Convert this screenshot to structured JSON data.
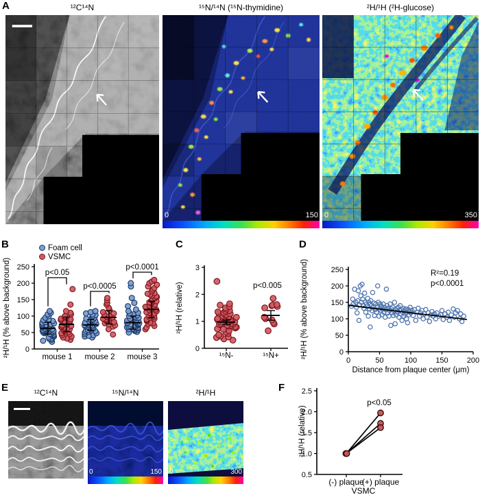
{
  "panel_labels": {
    "A": "A",
    "B": "B",
    "C": "C",
    "D": "D",
    "E": "E",
    "F": "F"
  },
  "panelA": {
    "images": [
      {
        "title": "¹²C¹⁴N"
      },
      {
        "title": "¹⁵N/¹⁴N (¹⁵N-thymidine)",
        "cbar_min": "0",
        "cbar_max": "150"
      },
      {
        "title": "²H/¹H (²H-glucose)",
        "cbar_min": "0",
        "cbar_max": "350"
      }
    ]
  },
  "panelE": {
    "images": [
      {
        "title": "¹²C¹⁴N"
      },
      {
        "title": "¹⁵N/¹⁴N",
        "cbar_min": "0",
        "cbar_max": "150"
      },
      {
        "title": "²H/¹H",
        "cbar_min": "0",
        "cbar_max": "300"
      }
    ]
  },
  "chart_data": [
    {
      "id": "B",
      "type": "scatter",
      "subtype": "grouped_beeswarm",
      "ylabel": "²H/¹H (% above background)",
      "ylim": [
        0,
        250
      ],
      "yticks": [
        0,
        50,
        100,
        150,
        200,
        250
      ],
      "categories": [
        "mouse 1",
        "mouse 2",
        "mouse 3"
      ],
      "legend": [
        {
          "label": "Foam cell",
          "color": "#7b9ed0",
          "edge": "#1e3a68"
        },
        {
          "label": "VSMC",
          "color": "#cf5a63",
          "edge": "#7e151b"
        }
      ],
      "pvalues": [
        "p<0.05",
        "p<0.0005",
        "p<0.0001"
      ],
      "series": [
        {
          "name": "Foam cell",
          "fill": "#7b9ed0",
          "edge": "#1e3a68",
          "means": [
            63,
            73,
            80
          ],
          "sds": [
            18,
            16,
            20
          ],
          "groups": [
            [
              22,
              25,
              28,
              30,
              32,
              35,
              38,
              40,
              42,
              44,
              45,
              46,
              48,
              50,
              50,
              52,
              53,
              55,
              55,
              56,
              58,
              58,
              60,
              60,
              62,
              63,
              64,
              65,
              66,
              68,
              68,
              70,
              72,
              73,
              75,
              76,
              78,
              80,
              82,
              85,
              88,
              90,
              95,
              100,
              105,
              110,
              115
            ],
            [
              35,
              38,
              40,
              42,
              45,
              48,
              50,
              52,
              54,
              55,
              56,
              58,
              60,
              62,
              63,
              65,
              66,
              68,
              70,
              70,
              72,
              73,
              75,
              76,
              78,
              80,
              82,
              84,
              85,
              88,
              90,
              92,
              95,
              98,
              100,
              103,
              105,
              108,
              112,
              115
            ],
            [
              50,
              52,
              55,
              56,
              58,
              60,
              60,
              62,
              63,
              65,
              65,
              66,
              68,
              68,
              70,
              72,
              72,
              74,
              75,
              76,
              78,
              78,
              80,
              80,
              82,
              84,
              85,
              86,
              88,
              90,
              92,
              94,
              95,
              98,
              100,
              102,
              105,
              108,
              110,
              115,
              120,
              130,
              140,
              155,
              190,
              200
            ]
          ]
        },
        {
          "name": "VSMC",
          "fill": "#cf5a63",
          "edge": "#7e151b",
          "means": [
            75,
            96,
            120
          ],
          "sds": [
            22,
            20,
            25
          ],
          "groups": [
            [
              28,
              32,
              35,
              38,
              42,
              45,
              48,
              50,
              52,
              55,
              58,
              60,
              62,
              65,
              66,
              68,
              70,
              72,
              74,
              75,
              78,
              80,
              82,
              85,
              88,
              90,
              92,
              95,
              98,
              100,
              105,
              110,
              115,
              135,
              182
            ],
            [
              44,
              60,
              68,
              72,
              75,
              78,
              80,
              82,
              85,
              88,
              90,
              92,
              95,
              96,
              98,
              100,
              105,
              108,
              112,
              118,
              125,
              135,
              140,
              148,
              155
            ],
            [
              60,
              65,
              70,
              75,
              78,
              80,
              85,
              88,
              90,
              92,
              95,
              98,
              100,
              102,
              105,
              108,
              110,
              112,
              115,
              118,
              120,
              122,
              125,
              128,
              130,
              132,
              135,
              138,
              140,
              142,
              145,
              148,
              150,
              152,
              155,
              158,
              160,
              162,
              165,
              168,
              170,
              175,
              180,
              185,
              190,
              195,
              200,
              205,
              210
            ]
          ]
        }
      ]
    },
    {
      "id": "C",
      "type": "scatter",
      "subtype": "beeswarm",
      "ylabel": "²H/¹H (relative)",
      "ylim": [
        0,
        3
      ],
      "yticks": [
        0,
        1,
        2,
        3
      ],
      "categories": [
        "¹⁵N-",
        "¹⁵N+"
      ],
      "pvalue": "p<0.005",
      "fill": "#cf5a63",
      "edge": "#7e151b",
      "series": [
        {
          "name": "¹⁵N-",
          "mean": 0.97,
          "err": 0.08,
          "values": [
            0.3,
            0.35,
            0.4,
            0.42,
            0.45,
            0.5,
            0.55,
            0.6,
            0.65,
            0.7,
            0.72,
            0.75,
            0.78,
            0.8,
            0.82,
            0.85,
            0.85,
            0.88,
            0.9,
            0.9,
            0.92,
            0.95,
            0.95,
            0.98,
            1.0,
            1.0,
            1.02,
            1.05,
            1.05,
            1.08,
            1.1,
            1.1,
            1.12,
            1.15,
            1.15,
            1.18,
            1.2,
            1.22,
            1.25,
            1.28,
            1.3,
            1.32,
            1.35,
            1.38,
            1.4,
            1.45,
            1.5,
            1.55,
            1.6,
            1.65,
            2.48
          ]
        },
        {
          "name": "¹⁵N+",
          "mean": 1.22,
          "err": 0.18,
          "values": [
            0.65,
            0.9,
            0.95,
            1.05,
            1.1,
            1.15,
            1.5,
            1.55,
            1.58,
            1.6,
            1.62,
            1.85
          ]
        }
      ]
    },
    {
      "id": "D",
      "type": "scatter",
      "xlabel": "Distance from plaque center (μm)",
      "ylabel": "²H/¹H (% above background)",
      "xlim": [
        0,
        200
      ],
      "ylim": [
        0,
        250
      ],
      "xticks": [
        0,
        50,
        100,
        150,
        200
      ],
      "yticks": [
        0,
        50,
        100,
        150,
        200,
        250
      ],
      "annotation": [
        "R²=0.19",
        "p<0.0001"
      ],
      "marker": {
        "edge": "#4f74ad",
        "open": true
      },
      "trend": {
        "x1": 0,
        "y1": 141,
        "x2": 190,
        "y2": 98
      },
      "points": [
        [
          5,
          138
        ],
        [
          7,
          160
        ],
        [
          8,
          145
        ],
        [
          10,
          190
        ],
        [
          12,
          150
        ],
        [
          13,
          135
        ],
        [
          14,
          118
        ],
        [
          15,
          155
        ],
        [
          16,
          185
        ],
        [
          17,
          95
        ],
        [
          18,
          142
        ],
        [
          19,
          200
        ],
        [
          20,
          170
        ],
        [
          21,
          150
        ],
        [
          22,
          205
        ],
        [
          23,
          160
        ],
        [
          24,
          140
        ],
        [
          25,
          132
        ],
        [
          26,
          178
        ],
        [
          27,
          150
        ],
        [
          28,
          120
        ],
        [
          29,
          145
        ],
        [
          30,
          138
        ],
        [
          31,
          162
        ],
        [
          32,
          108
        ],
        [
          33,
          150
        ],
        [
          34,
          130
        ],
        [
          35,
          145
        ],
        [
          35,
          75
        ],
        [
          36,
          155
        ],
        [
          37,
          140
        ],
        [
          38,
          125
        ],
        [
          39,
          180
        ],
        [
          40,
          135
        ],
        [
          41,
          148
        ],
        [
          42,
          110
        ],
        [
          43,
          128
        ],
        [
          44,
          145
        ],
        [
          45,
          120
        ],
        [
          46,
          135
        ],
        [
          47,
          200
        ],
        [
          48,
          150
        ],
        [
          49,
          108
        ],
        [
          50,
          130
        ],
        [
          51,
          145
        ],
        [
          52,
          125
        ],
        [
          53,
          138
        ],
        [
          54,
          112
        ],
        [
          55,
          130
        ],
        [
          56,
          145
        ],
        [
          57,
          120
        ],
        [
          58,
          135
        ],
        [
          59,
          105
        ],
        [
          60,
          128
        ],
        [
          61,
          190
        ],
        [
          62,
          140
        ],
        [
          63,
          118
        ],
        [
          64,
          132
        ],
        [
          65,
          108
        ],
        [
          66,
          125
        ],
        [
          67,
          145
        ],
        [
          68,
          80
        ],
        [
          69,
          130
        ],
        [
          70,
          118
        ],
        [
          71,
          135
        ],
        [
          72,
          110
        ],
        [
          73,
          125
        ],
        [
          74,
          150
        ],
        [
          75,
          85
        ],
        [
          76,
          128
        ],
        [
          77,
          112
        ],
        [
          78,
          132
        ],
        [
          79,
          120
        ],
        [
          80,
          135
        ],
        [
          81,
          105
        ],
        [
          82,
          125
        ],
        [
          83,
          140
        ],
        [
          84,
          115
        ],
        [
          85,
          128
        ],
        [
          86,
          95
        ],
        [
          87,
          120
        ],
        [
          88,
          132
        ],
        [
          89,
          108
        ],
        [
          90,
          125
        ],
        [
          91,
          115
        ],
        [
          92,
          130
        ],
        [
          93,
          100
        ],
        [
          94,
          120
        ],
        [
          95,
          88
        ],
        [
          96,
          128
        ],
        [
          97,
          112
        ],
        [
          98,
          122
        ],
        [
          99,
          135
        ],
        [
          100,
          118
        ],
        [
          102,
          125
        ],
        [
          104,
          110
        ],
        [
          106,
          128
        ],
        [
          108,
          95
        ],
        [
          110,
          120
        ],
        [
          112,
          132
        ],
        [
          114,
          108
        ],
        [
          116,
          118
        ],
        [
          118,
          125
        ],
        [
          120,
          100
        ],
        [
          122,
          115
        ],
        [
          124,
          128
        ],
        [
          126,
          105
        ],
        [
          128,
          118
        ],
        [
          130,
          92
        ],
        [
          132,
          112
        ],
        [
          134,
          122
        ],
        [
          136,
          108
        ],
        [
          138,
          115
        ],
        [
          140,
          100
        ],
        [
          142,
          118
        ],
        [
          145,
          108
        ],
        [
          148,
          112
        ],
        [
          150,
          125
        ],
        [
          152,
          98
        ],
        [
          155,
          115
        ],
        [
          158,
          105
        ],
        [
          160,
          120
        ],
        [
          162,
          95
        ],
        [
          165,
          112
        ],
        [
          168,
          130
        ],
        [
          170,
          105
        ],
        [
          172,
          118
        ],
        [
          175,
          125
        ],
        [
          178,
          100
        ],
        [
          180,
          115
        ],
        [
          182,
          92
        ],
        [
          185,
          108
        ]
      ]
    },
    {
      "id": "F",
      "type": "paired_lines",
      "ylabel": "²H/¹H (relative)",
      "ylim": [
        0.5,
        2.5
      ],
      "yticklabels": [
        "0.5",
        "1.0",
        "1.5",
        "2.0",
        "2.5"
      ],
      "categories": [
        "(-) plaque",
        "(+) plaque"
      ],
      "xlabel": "VSMC",
      "pvalue": "p<0.05",
      "fill": "#c4565c",
      "edge": "#3a0d0d",
      "pairs": [
        [
          1.0,
          1.97
        ],
        [
          1.0,
          1.72
        ],
        [
          1.0,
          1.62
        ]
      ]
    }
  ]
}
